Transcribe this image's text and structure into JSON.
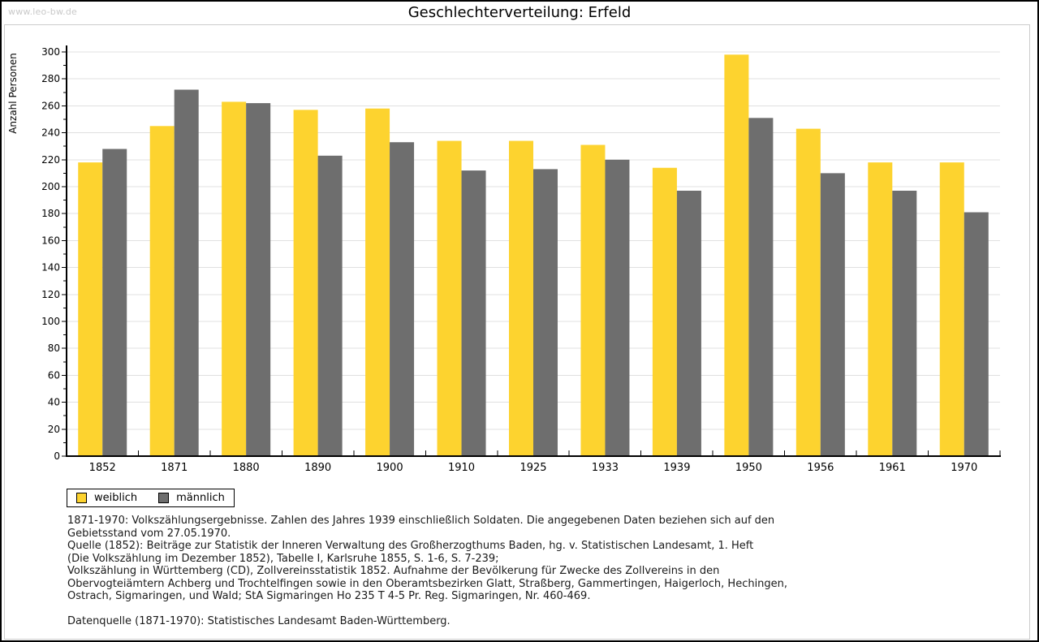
{
  "page": {
    "watermark": "www.leo-bw.de",
    "title": "Geschlechterverteilung: Erfeld"
  },
  "colors": {
    "female": "#fdd32f",
    "male": "#6e6e6e",
    "gridline": "#e0e0e0",
    "axis": "#000000",
    "watermark": "#c9c9c9"
  },
  "chart_data": {
    "type": "bar",
    "title": "Geschlechterverteilung: Erfeld",
    "xlabel": "",
    "ylabel": "Anzahl Personen",
    "ylim": [
      0,
      300
    ],
    "ytick_step": 20,
    "minor_tick_step": 10,
    "grid": true,
    "legend_position": "bottom-left",
    "categories": [
      "1852",
      "1871",
      "1880",
      "1890",
      "1900",
      "1910",
      "1925",
      "1933",
      "1939",
      "1950",
      "1956",
      "1961",
      "1970"
    ],
    "series": [
      {
        "name": "weiblich",
        "color": "#fdd32f",
        "values": [
          218,
          245,
          263,
          257,
          258,
          234,
          234,
          231,
          214,
          298,
          243,
          218,
          218
        ]
      },
      {
        "name": "männlich",
        "color": "#6e6e6e",
        "values": [
          228,
          272,
          262,
          223,
          233,
          212,
          213,
          220,
          197,
          251,
          210,
          197,
          181
        ]
      }
    ]
  },
  "footnotes": {
    "lines": [
      "1871-1970: Volkszählungsergebnisse. Zahlen des Jahres 1939 einschließlich Soldaten. Die angegebenen Daten beziehen sich auf den",
      "Gebietsstand vom 27.05.1970.",
      "Quelle (1852): Beiträge zur Statistik der Inneren Verwaltung des Großherzogthums Baden, hg. v. Statistischen Landesamt, 1. Heft",
      "(Die Volkszählung im Dezember 1852), Tabelle I, Karlsruhe 1855, S. 1-6, S. 7-239;",
      "Volkszählung in Württemberg (CD), Zollvereinsstatistik 1852. Aufnahme der Bevölkerung für Zwecke des Zollvereins in den",
      "Obervogteiämtern Achberg und Trochtelfingen sowie in den Oberamtsbezirken Glatt, Straßberg, Gammertingen, Haigerloch, Hechingen,",
      "Ostrach, Sigmaringen, und Wald; StA Sigmaringen Ho 235 T 4-5 Pr. Reg. Sigmaringen, Nr. 460-469."
    ],
    "datasource": "Datenquelle (1871-1970): Statistisches Landesamt Baden-Württemberg."
  }
}
